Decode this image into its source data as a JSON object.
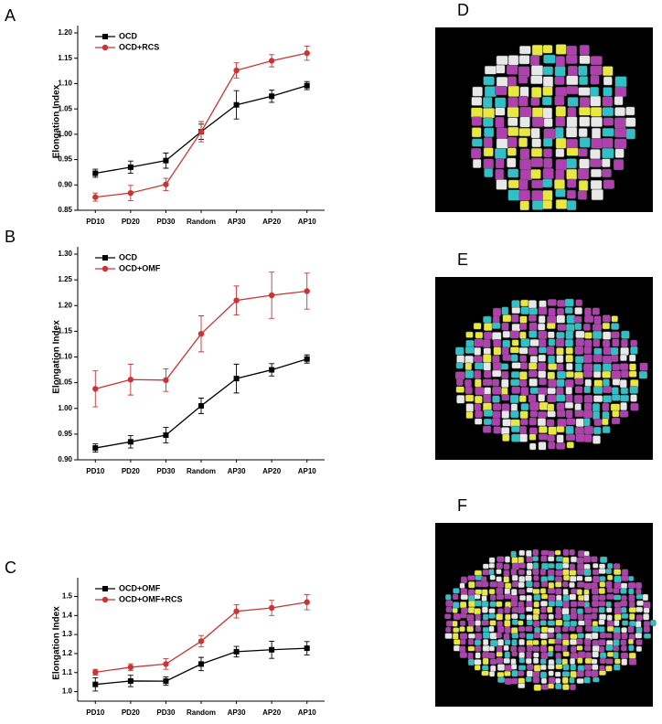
{
  "chart_data": [
    {
      "type": "line",
      "panel": "A",
      "y_label": "Elongation Index",
      "categories": [
        "PD10",
        "PD20",
        "PD30",
        "Random",
        "AP30",
        "AP20",
        "AP10"
      ],
      "ylim": [
        0.85,
        1.2
      ],
      "yticks": [
        0.85,
        {
          "value": 0.9,
          "label": "0.90"
        },
        0.95,
        {
          "value": 1.0,
          "label": "1.00"
        },
        1.05,
        {
          "value": 1.1,
          "label": "1.10"
        },
        1.15,
        {
          "value": 1.2,
          "label": "1.20"
        }
      ],
      "series": [
        {
          "name": "OCD",
          "color": "#000000",
          "marker": "square",
          "values": [
            0.923,
            0.935,
            0.948,
            1.005,
            1.058,
            1.075,
            1.096
          ],
          "errors": [
            0.008,
            0.012,
            0.015,
            0.015,
            0.028,
            0.012,
            0.008
          ]
        },
        {
          "name": "OCD+RCS",
          "color": "#cc3333",
          "marker": "circle",
          "values": [
            0.876,
            0.884,
            0.901,
            1.005,
            1.126,
            1.145,
            1.16
          ],
          "errors": [
            0.008,
            0.015,
            0.012,
            0.02,
            0.015,
            0.012,
            0.014
          ]
        }
      ]
    },
    {
      "type": "line",
      "panel": "B",
      "y_label": "Elongation Index",
      "categories": [
        "PD10",
        "PD20",
        "PD30",
        "Random",
        "AP30",
        "AP20",
        "AP10"
      ],
      "ylim": [
        0.9,
        1.3
      ],
      "yticks": [
        {
          "value": 0.9,
          "label": "0.90"
        },
        0.95,
        {
          "value": 1.0,
          "label": "1.00"
        },
        1.05,
        {
          "value": 1.1,
          "label": "1.10"
        },
        1.15,
        {
          "value": 1.2,
          "label": "1.20"
        },
        1.25,
        {
          "value": 1.3,
          "label": "1.30"
        }
      ],
      "series": [
        {
          "name": "OCD",
          "color": "#000000",
          "marker": "square",
          "values": [
            0.923,
            0.935,
            0.948,
            1.005,
            1.058,
            1.075,
            1.096
          ],
          "errors": [
            0.008,
            0.012,
            0.015,
            0.015,
            0.028,
            0.012,
            0.008
          ]
        },
        {
          "name": "OCD+OMF",
          "color": "#cc3333",
          "marker": "circle",
          "values": [
            1.038,
            1.056,
            1.055,
            1.145,
            1.21,
            1.22,
            1.228
          ],
          "errors": [
            0.035,
            0.03,
            0.022,
            0.035,
            0.028,
            0.045,
            0.035
          ]
        }
      ]
    },
    {
      "type": "line",
      "panel": "C",
      "y_label": "Elongation Index",
      "categories": [
        "PD10",
        "PD20",
        "PD30",
        "Random",
        "AP30",
        "AP20",
        "AP10"
      ],
      "ylim": [
        0.95,
        1.56
      ],
      "yticks": [
        {
          "value": 1.0,
          "label": "1.0"
        },
        1.1,
        1.2,
        1.3,
        1.4,
        1.5
      ],
      "series": [
        {
          "name": "OCD+OMF",
          "color": "#000000",
          "marker": "square",
          "values": [
            1.038,
            1.056,
            1.055,
            1.145,
            1.21,
            1.22,
            1.228
          ],
          "errors": [
            0.035,
            0.03,
            0.022,
            0.035,
            0.028,
            0.045,
            0.035
          ]
        },
        {
          "name": "OCD+OMF+RCS",
          "color": "#cc3333",
          "marker": "circle",
          "values": [
            1.102,
            1.128,
            1.145,
            1.265,
            1.422,
            1.44,
            1.47
          ],
          "errors": [
            0.015,
            0.018,
            0.028,
            0.03,
            0.035,
            0.04,
            0.04
          ]
        }
      ]
    }
  ],
  "images": [
    {
      "label": "D"
    },
    {
      "label": "E"
    },
    {
      "label": "F"
    }
  ]
}
